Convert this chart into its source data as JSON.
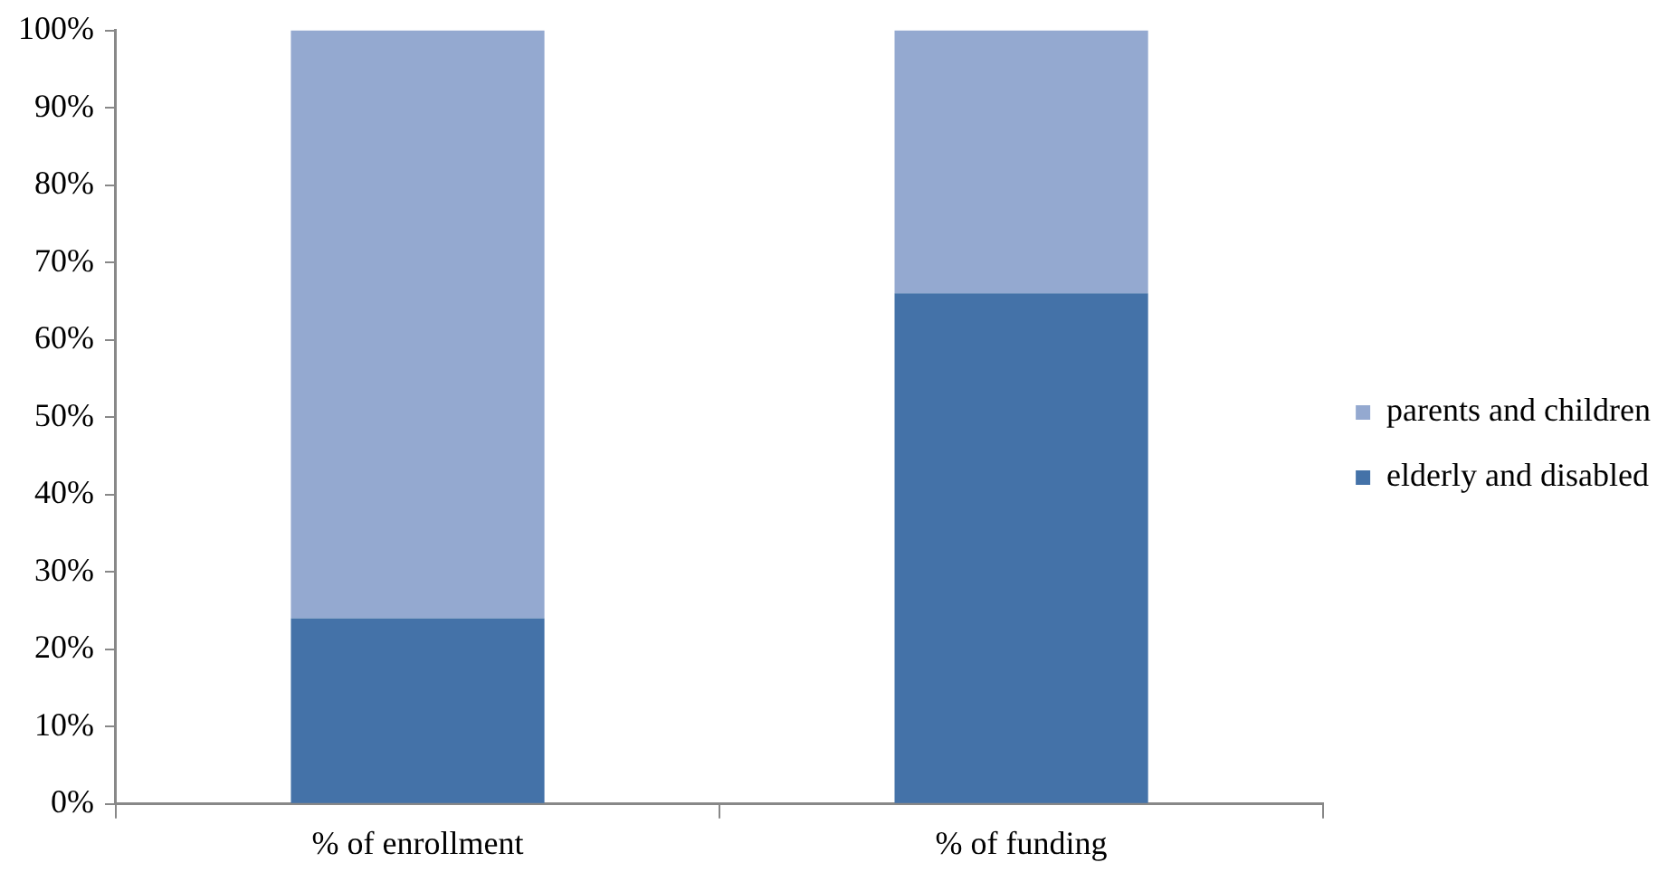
{
  "chart_data": {
    "type": "bar",
    "stacked": true,
    "categories": [
      "% of enrollment",
      "% of funding"
    ],
    "series": [
      {
        "name": "elderly and disabled",
        "color": "#4472a8",
        "values": [
          24,
          66
        ]
      },
      {
        "name": "parents and children",
        "color": "#94a9d0",
        "values": [
          76,
          34
        ]
      }
    ],
    "ylim": [
      0,
      100
    ],
    "yticks": [
      {
        "value": 0,
        "label": "0%"
      },
      {
        "value": 10,
        "label": "10%"
      },
      {
        "value": 20,
        "label": "20%"
      },
      {
        "value": 30,
        "label": "30%"
      },
      {
        "value": 40,
        "label": "40%"
      },
      {
        "value": 50,
        "label": "50%"
      },
      {
        "value": 60,
        "label": "60%"
      },
      {
        "value": 70,
        "label": "70%"
      },
      {
        "value": 80,
        "label": "80%"
      },
      {
        "value": 90,
        "label": "90%"
      },
      {
        "value": 100,
        "label": "100%"
      }
    ],
    "grid": false,
    "legend": "right"
  }
}
